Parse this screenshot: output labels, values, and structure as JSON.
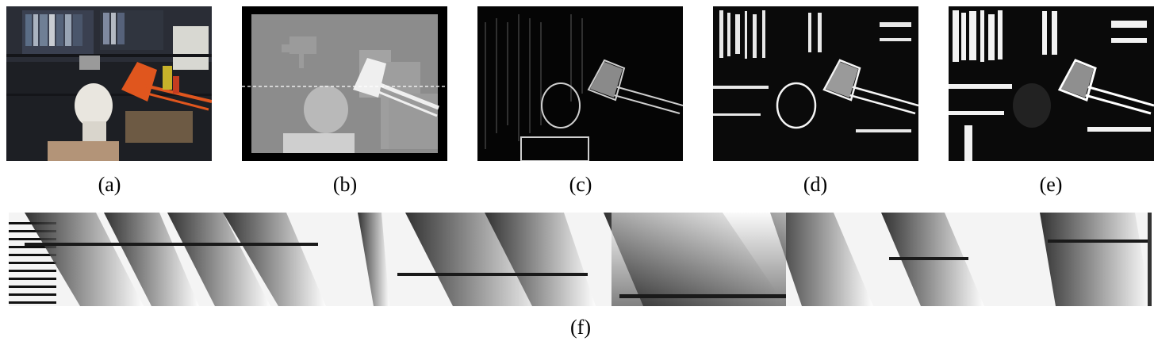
{
  "figure": {
    "panels": [
      {
        "id": "a",
        "caption": "(a)",
        "description_icon": "stereo-image-photo"
      },
      {
        "id": "b",
        "caption": "(b)",
        "description_icon": "disparity-map"
      },
      {
        "id": "c",
        "caption": "(c)",
        "description_icon": "edge-map"
      },
      {
        "id": "d",
        "caption": "(d)",
        "description_icon": "edge-map-strong"
      },
      {
        "id": "e",
        "caption": "(e)",
        "description_icon": "edge-map-strongest"
      },
      {
        "id": "f",
        "caption": "(f)",
        "description_icon": "cost-volume-slice"
      }
    ],
    "colors": {
      "lamp": "#e0561e",
      "background_dark": "#000000",
      "depth_gray": "#8c8c8c"
    }
  }
}
